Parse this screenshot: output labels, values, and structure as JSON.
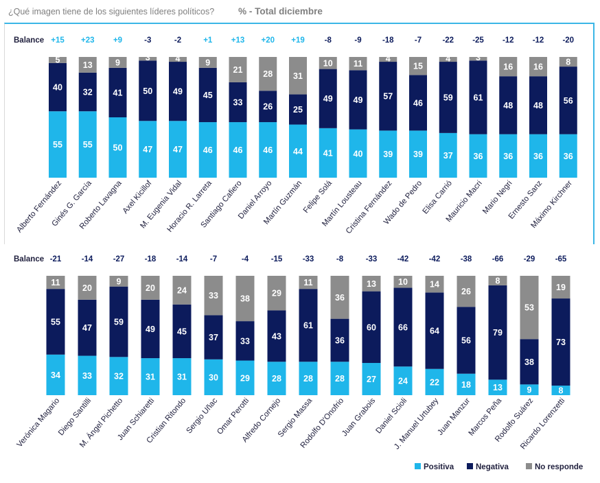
{
  "header": {
    "question": "¿Qué imagen tiene de los siguientes líderes políticos?",
    "subtitle": "% - Total diciembre"
  },
  "colors": {
    "positiva": "#1fb6ea",
    "negativa": "#0c1b5c",
    "no_responde": "#8c8c8c",
    "balance_positive": "#1fb6ea",
    "balance_negative": "#0c1b5c",
    "frame": "#3ab6e6"
  },
  "chart_data": [
    {
      "type": "bar",
      "stacked": true,
      "balance_label": "Balance",
      "categories": [
        "Alberto Fernández",
        "Ginés G. García",
        "Roberto Lavagna",
        "Axel Kicillof",
        "M. Eugenia Vidal",
        "Horacio R. Larreta",
        "Santiago Cafiero",
        "Daniel Arroyo",
        "Martín Guzmán",
        "Felipe Solá",
        "Martín Lousteau",
        "Cristina Fernández",
        "Wado de Pedro",
        "Elisa Carrió",
        "Mauricio Macri",
        "Mario Negri",
        "Ernesto Sanz",
        "Máximo Kirchner"
      ],
      "balance": [
        "+15",
        "+23",
        "+9",
        "-3",
        "-2",
        "+1",
        "+13",
        "+20",
        "+19",
        "-8",
        "-9",
        "-18",
        "-7",
        "-22",
        "-25",
        "-12",
        "-12",
        "-20"
      ],
      "series": [
        {
          "name": "Positiva",
          "values": [
            55,
            55,
            50,
            47,
            47,
            46,
            46,
            46,
            44,
            41,
            40,
            39,
            39,
            37,
            36,
            36,
            36,
            36
          ]
        },
        {
          "name": "Negativa",
          "values": [
            40,
            32,
            41,
            50,
            49,
            45,
            33,
            26,
            25,
            49,
            49,
            57,
            46,
            59,
            61,
            48,
            48,
            56
          ]
        },
        {
          "name": "No responde",
          "values": [
            5,
            13,
            9,
            3,
            4,
            9,
            21,
            28,
            31,
            10,
            11,
            4,
            15,
            4,
            3,
            16,
            16,
            8
          ]
        }
      ]
    },
    {
      "type": "bar",
      "stacked": true,
      "balance_label": "Balance",
      "categories": [
        "Verónica Magario",
        "Diego Santilli",
        "M. Ángel Pichetto",
        "Juan Schiaretti",
        "Cristian Ritondo",
        "Sergio Uñac",
        "Omar Perotti",
        "Alfredo Cornejo",
        "Sergio Massa",
        "Rodolfo D'Onofrio",
        "Juan Grabois",
        "Daniel Scioli",
        "J. Manuel Urtubey",
        "Juan Manzur",
        "Marcos Peña",
        "Rodolfo Suárez",
        "Ricardo Lorenzetti"
      ],
      "balance": [
        "-21",
        "-14",
        "-27",
        "-18",
        "-14",
        "-7",
        "-4",
        "-15",
        "-33",
        "-8",
        "-33",
        "-42",
        "-42",
        "-38",
        "-66",
        "-29",
        "-65"
      ],
      "series": [
        {
          "name": "Positiva",
          "values": [
            34,
            33,
            32,
            31,
            31,
            30,
            29,
            28,
            28,
            28,
            27,
            24,
            22,
            18,
            13,
            9,
            8
          ]
        },
        {
          "name": "Negativa",
          "values": [
            55,
            47,
            59,
            49,
            45,
            37,
            33,
            43,
            61,
            36,
            60,
            66,
            64,
            56,
            79,
            38,
            73
          ]
        },
        {
          "name": "No responde",
          "values": [
            11,
            20,
            9,
            20,
            24,
            33,
            38,
            29,
            11,
            36,
            13,
            10,
            14,
            26,
            8,
            53,
            19
          ]
        }
      ]
    }
  ],
  "legend": [
    {
      "label": "Positiva"
    },
    {
      "label": "Negativa"
    },
    {
      "label": "No responde"
    }
  ]
}
